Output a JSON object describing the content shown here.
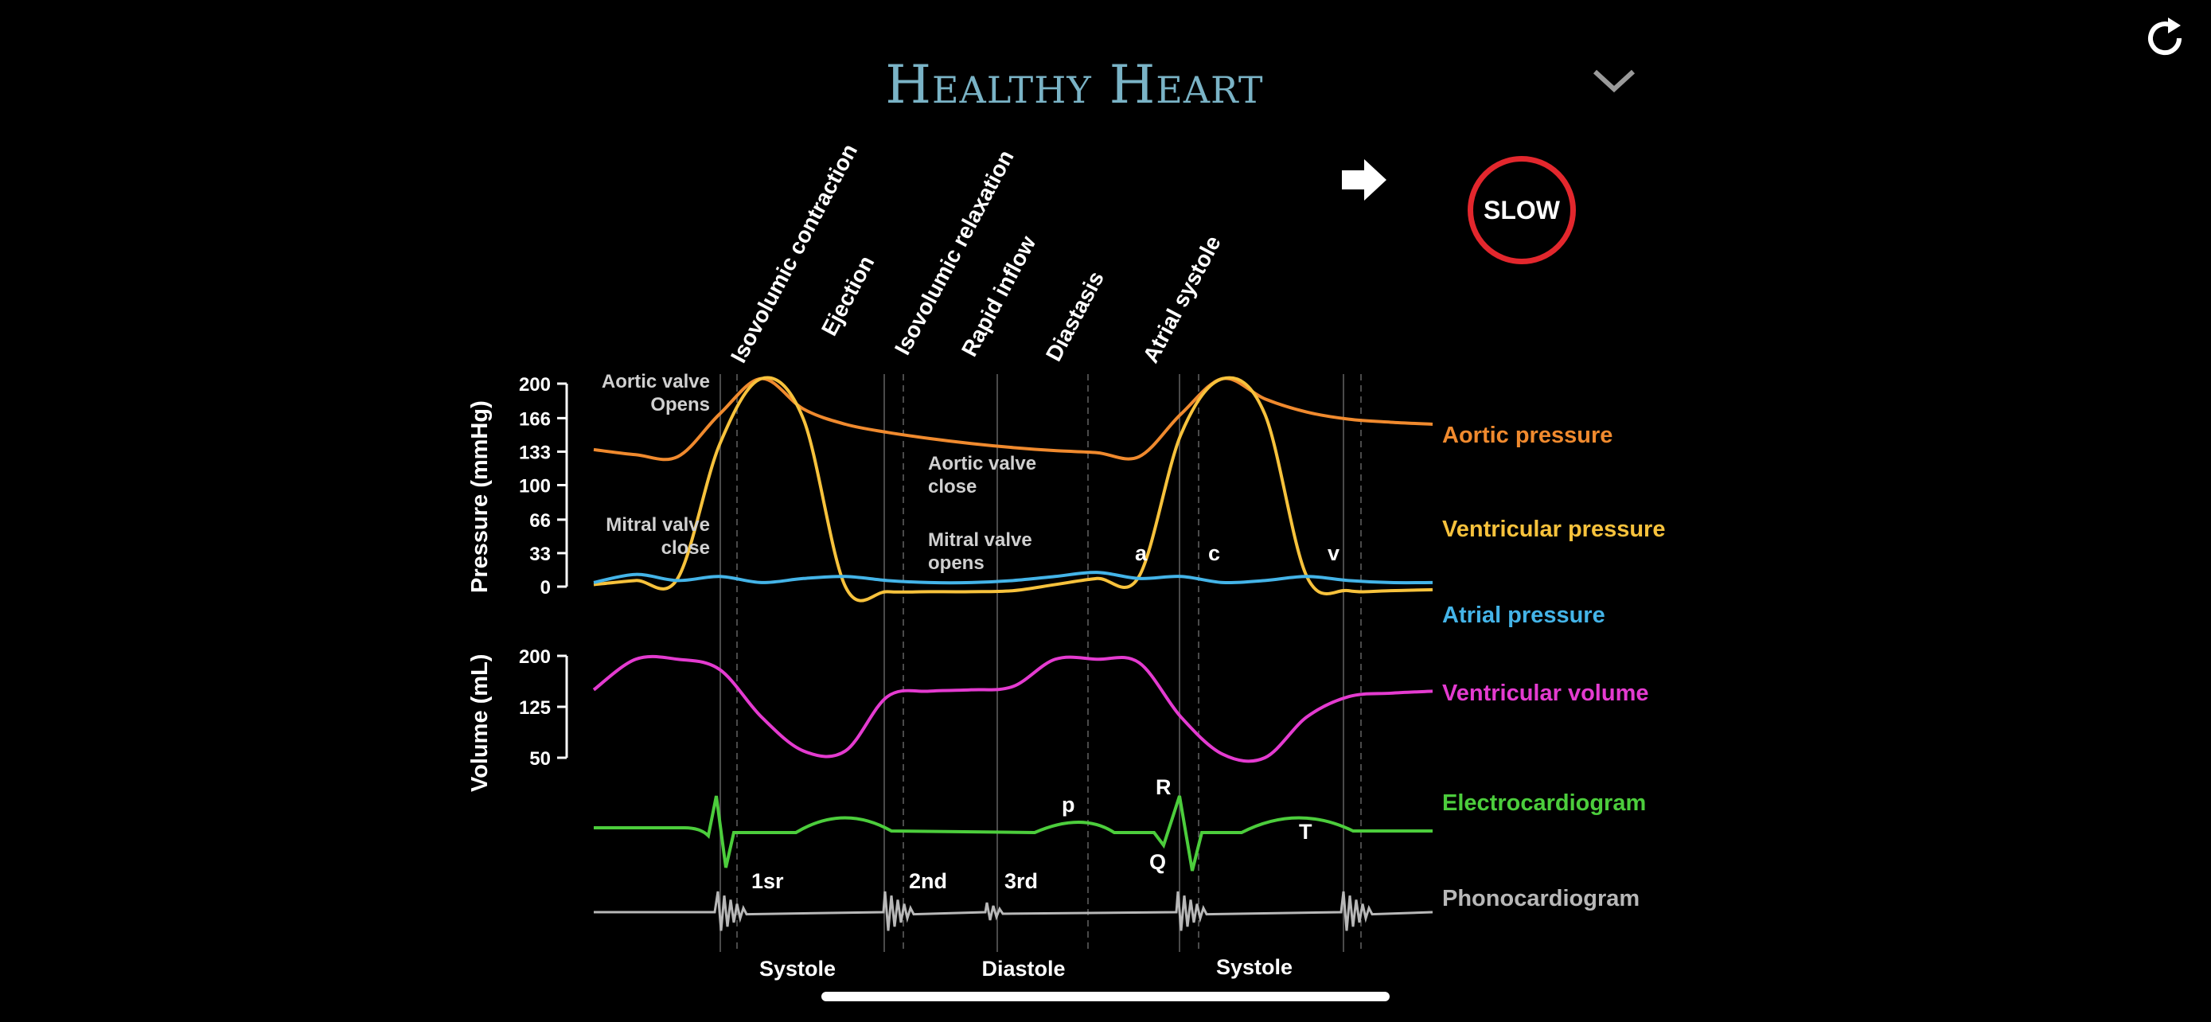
{
  "header": {
    "title": "Healthy Heart",
    "speed_label": "SLOW"
  },
  "icons": {
    "reload": "reload-icon",
    "chevron": "chevron-down-icon",
    "play": "arrow-right-icon"
  },
  "chart_data": {
    "type": "line",
    "phases": [
      "Isovolumic contraction",
      "Ejection",
      "Isovolumic relaxation",
      "Rapid inflow",
      "Diastasis",
      "Atrial systole"
    ],
    "periods": [
      "Systole",
      "Diastole",
      "Systole"
    ],
    "pressure_axis": {
      "label": "Pressure (mmHg)",
      "ticks": [
        200,
        166,
        133,
        100,
        66,
        33,
        0
      ],
      "ylim": [
        0,
        200
      ]
    },
    "volume_axis": {
      "label": "Volume (mL)",
      "ticks": [
        200,
        125,
        50
      ],
      "ylim": [
        50,
        200
      ]
    },
    "annotations": {
      "aortic_open": [
        "Aortic valve",
        "Opens"
      ],
      "mitral_close": [
        "Mitral valve",
        "close"
      ],
      "aortic_close": [
        "Aortic valve",
        "close"
      ],
      "mitral_open": [
        "Mitral valve",
        "opens"
      ]
    },
    "wave_labels": {
      "a": "a",
      "c": "c",
      "v": "v",
      "p": "p",
      "R": "R",
      "Q": "Q",
      "T": "T"
    },
    "sound_labels": [
      "1sr",
      "2nd",
      "3rd"
    ],
    "x": [
      0,
      5,
      10,
      15,
      20,
      25,
      30,
      35,
      40,
      45,
      50,
      55,
      60,
      65,
      70,
      75,
      80,
      85,
      90,
      95,
      100
    ],
    "series": [
      {
        "name": "Aortic pressure",
        "color": "#f08a2e",
        "values": [
          135,
          130,
          128,
          170,
          205,
          175,
          160,
          152,
          146,
          141,
          137,
          134,
          132,
          128,
          170,
          205,
          185,
          172,
          165,
          162,
          160
        ]
      },
      {
        "name": "Ventricular pressure",
        "color": "#f7c23c",
        "values": [
          2,
          6,
          8,
          140,
          205,
          165,
          0,
          -5,
          -5,
          -5,
          -4,
          2,
          8,
          10,
          150,
          205,
          170,
          10,
          -4,
          -4,
          -3
        ]
      },
      {
        "name": "Atrial pressure",
        "color": "#44b4e8",
        "values": [
          4,
          12,
          6,
          10,
          4,
          8,
          10,
          6,
          4,
          4,
          6,
          10,
          14,
          8,
          10,
          4,
          6,
          10,
          6,
          4,
          4
        ]
      },
      {
        "name": "Ventricular volume",
        "color": "#e43bd0",
        "values": [
          150,
          195,
          195,
          180,
          110,
          60,
          60,
          140,
          148,
          150,
          155,
          195,
          195,
          190,
          110,
          55,
          50,
          110,
          140,
          145,
          148
        ]
      }
    ],
    "ecg": {
      "name": "Electrocardiogram",
      "color": "#4ccd3c"
    },
    "pcg": {
      "name": "Phonocardiogram",
      "color": "#b8b8b8"
    }
  }
}
